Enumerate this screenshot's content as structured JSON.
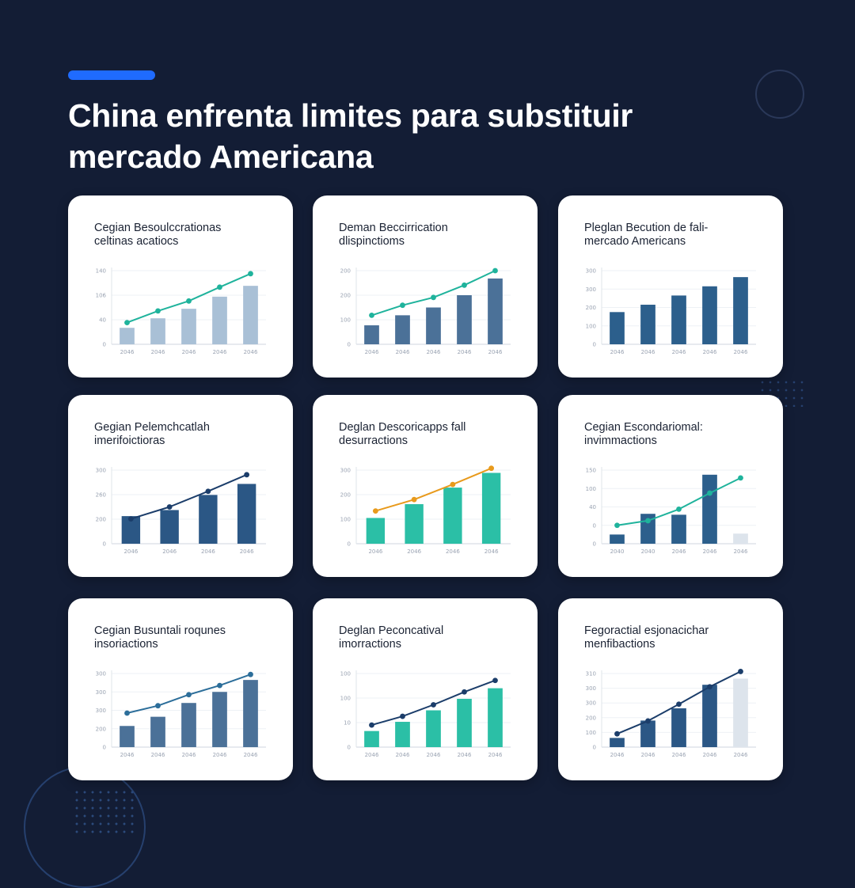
{
  "header": {
    "title_line1": "China enfrenta limites para substituir",
    "title_line2": "mercado Americana"
  },
  "colors": {
    "background": "#131d35",
    "accent": "#1f6bff",
    "card": "#ffffff"
  },
  "cards": [
    {
      "title_line1": "Cegian Besoulccrationas",
      "title_line2": "celtinas acatiocs"
    },
    {
      "title_line1": "Deman Beccirrication",
      "title_line2": "dlispinctioms"
    },
    {
      "title_line1": "Pleglan Becution de fali-",
      "title_line2": "mercado Americans"
    },
    {
      "title_line1": "Gegian Pelemchcatlah",
      "title_line2": "imerifoictioras"
    },
    {
      "title_line1": "Deglan Descoricapps fall",
      "title_line2": "desurractions"
    },
    {
      "title_line1": "Cegian Escondariomal:",
      "title_line2": "invimmactions"
    },
    {
      "title_line1": "Cegian Busuntali roqunes",
      "title_line2": "insoriactions"
    },
    {
      "title_line1": "Deglan Peconcatival",
      "title_line2": "imorractions"
    },
    {
      "title_line1": "Fegoractial esjonacichar",
      "title_line2": "menfibactions"
    }
  ],
  "chart_data": [
    {
      "type": "bar",
      "title": "Cegian Besoulccrationas celtinas acatiocs",
      "categories": [
        "2046",
        "2046",
        "2046",
        "2046",
        "2046"
      ],
      "yticks": [
        "0",
        "40",
        "106",
        "140"
      ],
      "ylim": [
        0,
        170
      ],
      "bar_color": "#a9c0d6",
      "series": [
        {
          "type": "bar",
          "values": [
            38,
            60,
            82,
            110,
            135
          ]
        }
      ],
      "line": {
        "values": [
          50,
          77,
          100,
          132,
          163
        ],
        "color": "#1fb39c"
      }
    },
    {
      "type": "bar",
      "title": "Deman Beccirrication dlispinctioms",
      "categories": [
        "2046",
        "2046",
        "2046",
        "2046",
        "2046"
      ],
      "yticks": [
        "0",
        "100",
        "200",
        "200"
      ],
      "ylim": [
        0,
        330
      ],
      "bar_color": "#4b7198",
      "series": [
        {
          "type": "bar",
          "values": [
            85,
            130,
            165,
            220,
            295
          ]
        }
      ],
      "line": {
        "values": [
          130,
          175,
          210,
          265,
          330
        ],
        "color": "#1fb39c"
      }
    },
    {
      "type": "bar",
      "title": "Pleglan Becution de fali- mercado Americans",
      "categories": [
        "2046",
        "2046",
        "2046",
        "2046",
        "2046"
      ],
      "yticks": [
        "0",
        "100",
        "200",
        "300",
        "300"
      ],
      "ylim": [
        0,
        400
      ],
      "bar_color": "#2c5f8c",
      "series": [
        {
          "type": "bar",
          "values": [
            175,
            215,
            265,
            315,
            365
          ]
        }
      ],
      "line": null
    },
    {
      "type": "bar",
      "title": "Gegian Pelemchcatlah imerifoictioras",
      "categories": [
        "2046",
        "2046",
        "2046",
        "2046"
      ],
      "yticks": [
        "0",
        "200",
        "260",
        "300"
      ],
      "ylim": [
        0,
        400
      ],
      "bar_color": "#2b5785",
      "series": [
        {
          "type": "bar",
          "values": [
            150,
            183,
            265,
            325
          ]
        }
      ],
      "line": {
        "values": [
          135,
          200,
          285,
          375
        ],
        "color": "#1b3d6a"
      }
    },
    {
      "type": "bar",
      "title": "Deglan Descoricapps fall desurractions",
      "categories": [
        "2046",
        "2046",
        "2046",
        "2046"
      ],
      "yticks": [
        "0",
        "100",
        "200",
        "300"
      ],
      "ylim": [
        0,
        400
      ],
      "bar_color": "#2bbfa6",
      "series": [
        {
          "type": "bar",
          "values": [
            140,
            215,
            305,
            385
          ]
        }
      ],
      "line": {
        "values": [
          178,
          240,
          322,
          410
        ],
        "color": "#e89a1c"
      }
    },
    {
      "type": "bar",
      "title": "Cegian Escondariomal: invimmactions",
      "categories": [
        "2040",
        "2040",
        "2046",
        "2046",
        "2046"
      ],
      "yticks": [
        "0",
        "0",
        "40",
        "100",
        "150"
      ],
      "ylim": [
        0,
        160
      ],
      "bar_color": "#2c5f8c",
      "series": [
        {
          "type": "bar",
          "values": [
            20,
            65,
            63,
            150,
            22
          ]
        }
      ],
      "highlight_last": "#dde4ec",
      "line": {
        "values": [
          40,
          50,
          75,
          110,
          143
        ],
        "color": "#1fb39c"
      }
    },
    {
      "type": "bar",
      "title": "Cegian Busuntali roqunes insoriactions",
      "categories": [
        "2046",
        "2046",
        "2046",
        "2046",
        "2046"
      ],
      "yticks": [
        "0",
        "200",
        "300",
        "300",
        "300"
      ],
      "ylim": [
        0,
        400
      ],
      "bar_color": "#4b7198",
      "series": [
        {
          "type": "bar",
          "values": [
            115,
            165,
            240,
            300,
            365
          ]
        }
      ],
      "line": {
        "values": [
          185,
          225,
          285,
          335,
          395
        ],
        "color": "#2c6e9a"
      }
    },
    {
      "type": "bar",
      "title": "Deglan Peconcatival imorractions",
      "categories": [
        "2046",
        "2046",
        "2046",
        "2046",
        "2046"
      ],
      "yticks": [
        "0",
        "10",
        "100",
        "100"
      ],
      "ylim": [
        0,
        160
      ],
      "bar_color": "#2bbfa6",
      "series": [
        {
          "type": "bar",
          "values": [
            35,
            55,
            80,
            105,
            128
          ]
        }
      ],
      "line": {
        "values": [
          48,
          67,
          92,
          120,
          145
        ],
        "color": "#1b3d6a"
      }
    },
    {
      "type": "bar",
      "title": "Fegoractial esjonacichar menfibactions",
      "categories": [
        "2046",
        "2046",
        "2046",
        "2046",
        "2046"
      ],
      "yticks": [
        "0",
        "100",
        "200",
        "300",
        "300",
        "310"
      ],
      "ylim": [
        0,
        360
      ],
      "bar_color": "#2b5785",
      "series": [
        {
          "type": "bar",
          "values": [
            45,
            130,
            190,
            305,
            335
          ]
        }
      ],
      "highlight_last": "#dde4ec",
      "line": {
        "values": [
          65,
          128,
          210,
          295,
          370
        ],
        "color": "#1b3d6a"
      }
    }
  ]
}
